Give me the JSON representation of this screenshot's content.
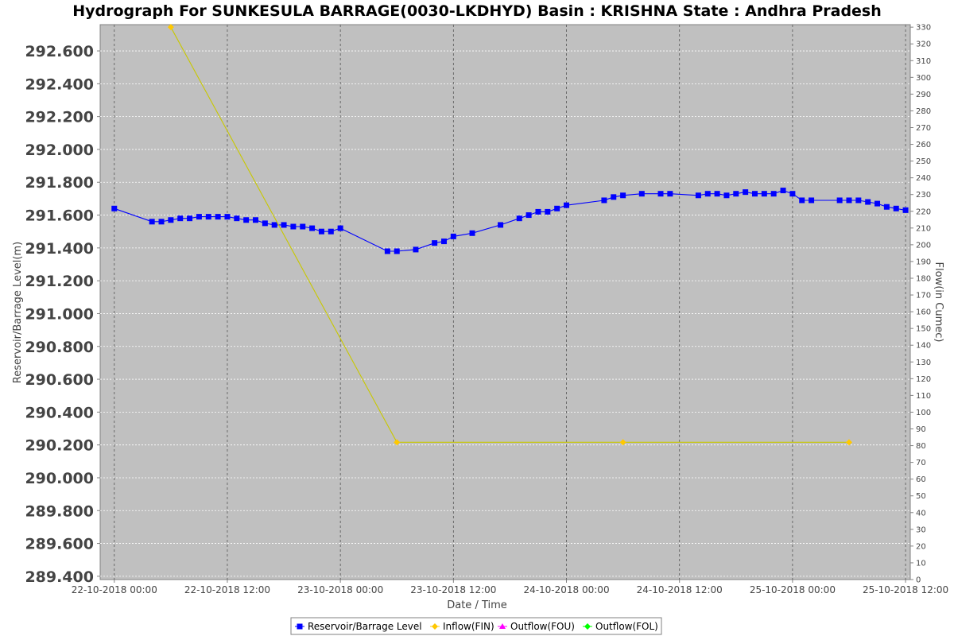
{
  "chart_data": {
    "type": "line",
    "title": "Hydrograph For SUNKESULA BARRAGE(0030-LKDHYD) Basin : KRISHNA State : Andhra Pradesh",
    "xlabel": "Date / Time",
    "ylabel_left": "Reservoir/Barrage Level(m)",
    "ylabel_right": "Flow(in Cumec)",
    "x_ticks": [
      "22-10-2018 00:00",
      "22-10-2018 12:00",
      "23-10-2018 00:00",
      "23-10-2018 12:00",
      "24-10-2018 00:00",
      "24-10-2018 12:00",
      "25-10-2018 00:00",
      "25-10-2018 12:00"
    ],
    "xlim_hours": [
      -1.5,
      84.5
    ],
    "ylim_left": [
      289.38,
      292.76
    ],
    "ylim_right": [
      0,
      331.5
    ],
    "y_ticks_left": [
      "289.400",
      "289.600",
      "289.800",
      "290.000",
      "290.200",
      "290.400",
      "290.600",
      "290.800",
      "291.000",
      "291.200",
      "291.400",
      "291.600",
      "291.800",
      "292.000",
      "292.200",
      "292.400",
      "292.600"
    ],
    "y_ticks_right": [
      0,
      10,
      20,
      30,
      40,
      50,
      60,
      70,
      80,
      90,
      100,
      110,
      120,
      130,
      140,
      150,
      160,
      170,
      180,
      190,
      200,
      210,
      220,
      230,
      240,
      250,
      260,
      270,
      280,
      290,
      300,
      310,
      320,
      330
    ],
    "grid": true,
    "legend_position": "bottom",
    "series": [
      {
        "name": "Reservoir/Barrage Level",
        "color": "#0000ff",
        "marker": "square",
        "axis": "left",
        "x_hours": [
          0,
          4,
          5,
          6,
          7,
          8,
          9,
          10,
          11,
          12,
          13,
          14,
          15,
          16,
          17,
          18,
          19,
          20,
          21,
          22,
          23,
          24,
          29,
          30,
          32,
          34,
          35,
          36,
          38,
          41,
          43,
          44,
          45,
          46,
          47,
          48,
          52,
          53,
          54,
          56,
          58,
          59,
          62,
          63,
          64,
          65,
          66,
          67,
          68,
          69,
          70,
          71,
          72,
          73,
          74,
          77,
          78,
          79,
          80,
          81,
          82,
          83,
          84
        ],
        "values": [
          291.64,
          291.56,
          291.56,
          291.57,
          291.58,
          291.58,
          291.59,
          291.59,
          291.59,
          291.59,
          291.58,
          291.57,
          291.57,
          291.55,
          291.54,
          291.54,
          291.53,
          291.53,
          291.52,
          291.5,
          291.5,
          291.52,
          291.38,
          291.38,
          291.39,
          291.43,
          291.44,
          291.47,
          291.49,
          291.54,
          291.58,
          291.6,
          291.62,
          291.62,
          291.64,
          291.66,
          291.69,
          291.71,
          291.72,
          291.73,
          291.73,
          291.73,
          291.72,
          291.73,
          291.73,
          291.72,
          291.73,
          291.74,
          291.73,
          291.73,
          291.73,
          291.75,
          291.73,
          291.69,
          291.69,
          291.69,
          291.69,
          291.69,
          291.68,
          291.67,
          291.65,
          291.64,
          291.63
        ]
      },
      {
        "name": "Inflow(FIN)",
        "color": "#ffc800",
        "line_color": "#c8c800",
        "marker": "diamond",
        "axis": "right",
        "x_hours": [
          6,
          30,
          54,
          78
        ],
        "values": [
          330,
          82,
          82,
          82
        ]
      },
      {
        "name": "Outflow(FOU)",
        "color": "#ff00ff",
        "marker": "triangle",
        "axis": "right",
        "x_hours": [],
        "values": []
      },
      {
        "name": "Outflow(FOL)",
        "color": "#00ff00",
        "marker": "diamond",
        "axis": "right",
        "x_hours": [],
        "values": []
      }
    ]
  }
}
